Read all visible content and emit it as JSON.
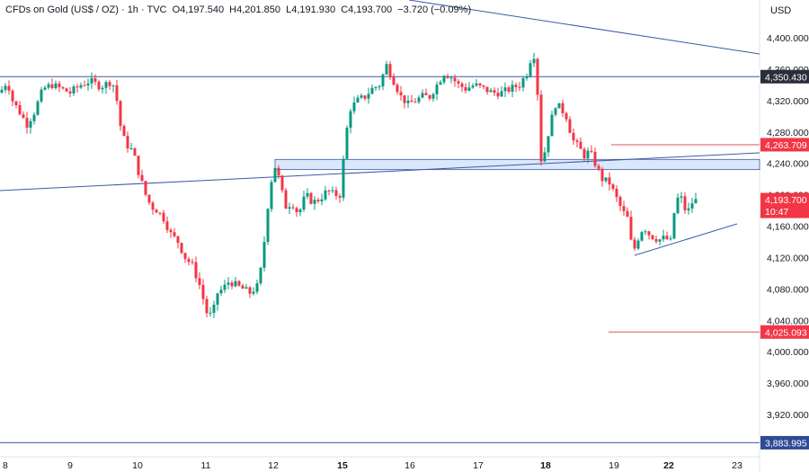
{
  "header": {
    "symbol": "CFDs on Gold (US$ / OZ) · 1h · TVC",
    "open": "O4,197.540",
    "high": "H4,201.850",
    "low": "L4,191.930",
    "close": "C4,193.700",
    "change": "−3.720 (−0.09%)"
  },
  "currency": "USD",
  "colors": {
    "up": "#089981",
    "down": "#f23645",
    "trendline": "#3e5aa8",
    "zone": "#dbe7fb"
  },
  "badges": {
    "last_price": "4,193.700",
    "countdown": "10:47",
    "resistance": "4,350.430",
    "upper_red": "4,263.709",
    "lower_red": "4,025.093",
    "bottom_blue": "3,883.995"
  },
  "chart_data": {
    "type": "candlestick",
    "y_ticks": [
      "4,400.000",
      "4,360.000",
      "4,320.000",
      "4,280.000",
      "4,240.000",
      "4,200.000",
      "4,160.000",
      "4,120.000",
      "4,080.000",
      "4,040.000",
      "4,000.000",
      "3,960.000",
      "3,920.000"
    ],
    "y_tick_values": [
      4400,
      4360,
      4320,
      4280,
      4240,
      4200,
      4160,
      4120,
      4080,
      4040,
      4000,
      3960,
      3920
    ],
    "x_ticks": [
      "8",
      "9",
      "10",
      "11",
      "12",
      "15",
      "16",
      "17",
      "18",
      "19",
      "22",
      "23"
    ],
    "ylim": [
      3880,
      4420
    ],
    "horizontal_levels": [
      {
        "value": 4350.43,
        "color": "blue"
      },
      {
        "value": 4263.709,
        "color": "red"
      },
      {
        "value": 4025.093,
        "color": "red"
      },
      {
        "value": 3883.995,
        "color": "blue"
      }
    ],
    "zone": [
      4232,
      4245
    ],
    "path": [
      [
        0,
        4330
      ],
      [
        8,
        4345
      ],
      [
        14,
        4320
      ],
      [
        22,
        4305
      ],
      [
        30,
        4290
      ],
      [
        38,
        4305
      ],
      [
        48,
        4335
      ],
      [
        58,
        4340
      ],
      [
        68,
        4335
      ],
      [
        78,
        4330
      ],
      [
        90,
        4340
      ],
      [
        100,
        4345
      ],
      [
        112,
        4338
      ],
      [
        125,
        4345
      ],
      [
        130,
        4320
      ],
      [
        135,
        4280
      ],
      [
        140,
        4265
      ],
      [
        148,
        4255
      ],
      [
        155,
        4225
      ],
      [
        162,
        4200
      ],
      [
        168,
        4185
      ],
      [
        175,
        4180
      ],
      [
        182,
        4170
      ],
      [
        190,
        4150
      ],
      [
        198,
        4140
      ],
      [
        206,
        4120
      ],
      [
        214,
        4110
      ],
      [
        222,
        4085
      ],
      [
        230,
        4050
      ],
      [
        236,
        4045
      ],
      [
        242,
        4075
      ],
      [
        248,
        4080
      ],
      [
        255,
        4090
      ],
      [
        262,
        4085
      ],
      [
        270,
        4080
      ],
      [
        278,
        4075
      ],
      [
        288,
        4085
      ],
      [
        295,
        4150
      ],
      [
        300,
        4210
      ],
      [
        307,
        4240
      ],
      [
        312,
        4210
      ],
      [
        318,
        4185
      ],
      [
        325,
        4190
      ],
      [
        332,
        4175
      ],
      [
        340,
        4200
      ],
      [
        348,
        4190
      ],
      [
        356,
        4195
      ],
      [
        364,
        4205
      ],
      [
        372,
        4200
      ],
      [
        380,
        4200
      ],
      [
        383,
        4265
      ],
      [
        390,
        4310
      ],
      [
        398,
        4320
      ],
      [
        406,
        4325
      ],
      [
        414,
        4335
      ],
      [
        422,
        4340
      ],
      [
        430,
        4365
      ],
      [
        438,
        4345
      ],
      [
        446,
        4325
      ],
      [
        454,
        4315
      ],
      [
        462,
        4320
      ],
      [
        470,
        4325
      ],
      [
        478,
        4325
      ],
      [
        486,
        4340
      ],
      [
        494,
        4355
      ],
      [
        502,
        4350
      ],
      [
        510,
        4340
      ],
      [
        518,
        4335
      ],
      [
        528,
        4340
      ],
      [
        538,
        4335
      ],
      [
        548,
        4330
      ],
      [
        558,
        4330
      ],
      [
        568,
        4335
      ],
      [
        578,
        4340
      ],
      [
        586,
        4355
      ],
      [
        592,
        4380
      ],
      [
        597,
        4375
      ],
      [
        600,
        4240
      ],
      [
        606,
        4255
      ],
      [
        612,
        4290
      ],
      [
        618,
        4315
      ],
      [
        624,
        4310
      ],
      [
        630,
        4300
      ],
      [
        637,
        4270
      ],
      [
        644,
        4260
      ],
      [
        650,
        4250
      ],
      [
        656,
        4255
      ],
      [
        662,
        4240
      ],
      [
        670,
        4220
      ],
      [
        678,
        4215
      ],
      [
        686,
        4195
      ],
      [
        692,
        4180
      ],
      [
        698,
        4170
      ],
      [
        704,
        4125
      ],
      [
        710,
        4145
      ],
      [
        716,
        4160
      ],
      [
        722,
        4150
      ],
      [
        728,
        4145
      ],
      [
        734,
        4143
      ],
      [
        740,
        4145
      ],
      [
        746,
        4140
      ],
      [
        752,
        4195
      ],
      [
        758,
        4195
      ],
      [
        764,
        4175
      ],
      [
        770,
        4190
      ],
      [
        776,
        4193.7
      ]
    ]
  }
}
